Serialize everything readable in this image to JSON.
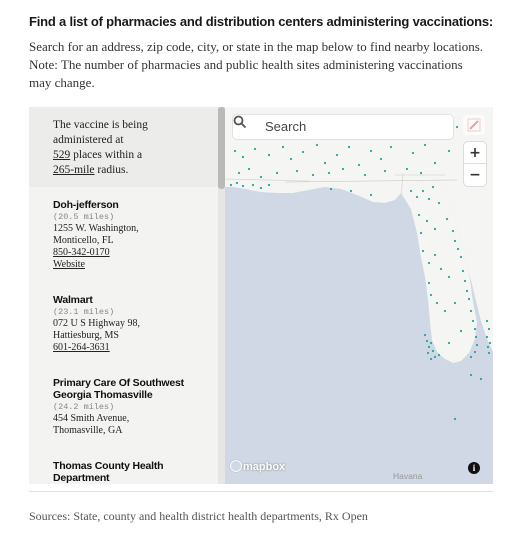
{
  "heading": "Find a list of pharmacies and distribution centers administering vaccinations:",
  "intro": "Search for an address, zip code, city, or state in the map below to find nearby locations. Note: The number of pharmacies and public health sites administering vaccinations may change.",
  "summary": {
    "prefix": "The vaccine is being administered at",
    "count": "529",
    "middle": " places within a",
    "radius": "265-mile",
    "suffix": " radius."
  },
  "results": [
    {
      "name": "Doh-jefferson",
      "distance": "(20.5 miles)",
      "address1": "1255 W. Washington,",
      "address2": "Monticello, FL",
      "phone": "850-342-0170",
      "website": "Website"
    },
    {
      "name": "Walmart",
      "distance": "(23.1 miles)",
      "address1": "072 U S Highway 98,",
      "address2": "Hattiesburg, MS",
      "phone": "601-264-3631"
    },
    {
      "name": "Primary Care Of Southwest Georgia Thomasville",
      "distance": "(24.2 miles)",
      "address1": "454 Smith Avenue,",
      "address2": "Thomasville, GA"
    },
    {
      "name": "Thomas County Health Department"
    }
  ],
  "map": {
    "search_placeholder": "Search",
    "zoom_in": "+",
    "zoom_out": "−",
    "logo": "mapbox",
    "city_label": "Havana",
    "info": "i",
    "icons": [
      "search-icon",
      "pencil-icon",
      "info-icon"
    ],
    "colors": {
      "water": "#cfd8e4",
      "land": "#f5f5f3",
      "marker": "#1fa89a"
    }
  },
  "sources": "Sources: State, county and health district health departments, Rx Open"
}
